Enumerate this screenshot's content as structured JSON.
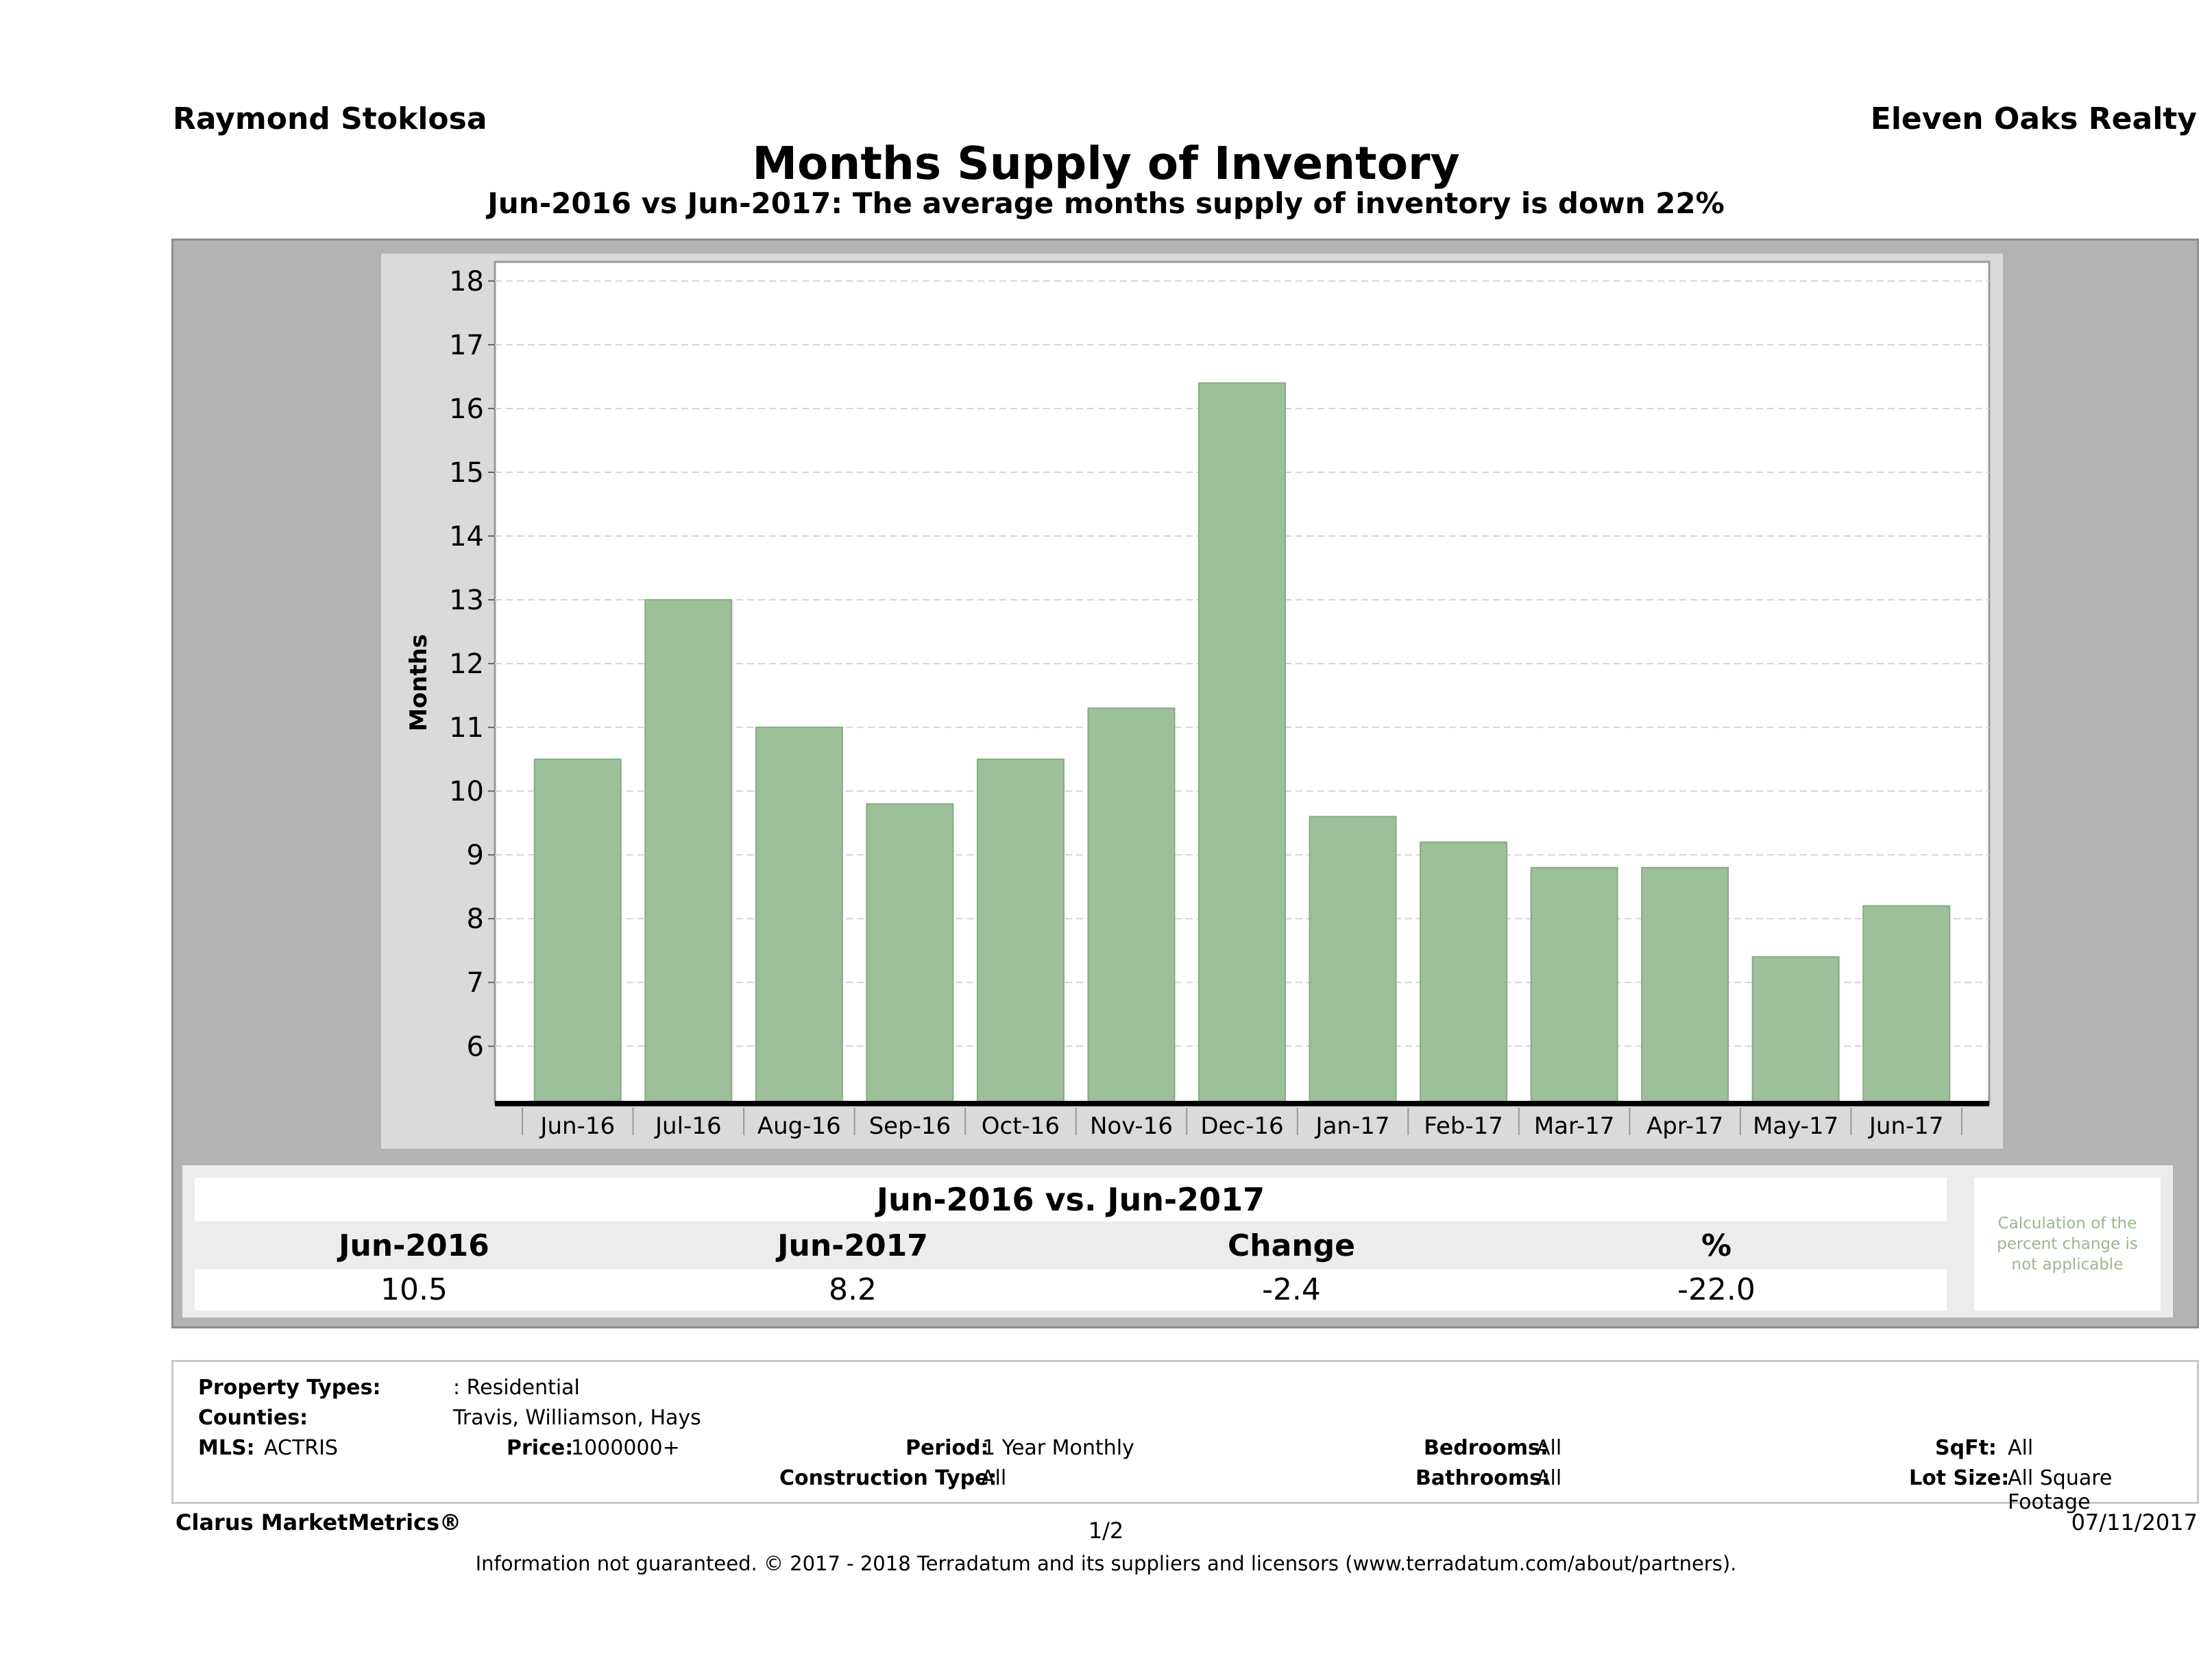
{
  "header": {
    "agent_name": "Raymond Stoklosa",
    "brokerage": "Eleven Oaks Realty",
    "title": "Months Supply of Inventory",
    "subtitle": "Jun-2016 vs Jun-2017: The average months supply of inventory is down 22%"
  },
  "chart_data": {
    "type": "bar",
    "categories": [
      "Jun-16",
      "Jul-16",
      "Aug-16",
      "Sep-16",
      "Oct-16",
      "Nov-16",
      "Dec-16",
      "Jan-17",
      "Feb-17",
      "Mar-17",
      "Apr-17",
      "May-17",
      "Jun-17"
    ],
    "values": [
      10.5,
      13.0,
      11.0,
      9.8,
      10.5,
      11.3,
      16.4,
      9.6,
      9.2,
      8.8,
      8.8,
      7.4,
      8.2
    ],
    "ylabel": "Months",
    "ylim": [
      5.1,
      18.3
    ],
    "yticks": [
      6,
      7,
      8,
      9,
      10,
      11,
      12,
      13,
      14,
      15,
      16,
      17,
      18
    ],
    "grid": true,
    "bar_color": "#9dc09a"
  },
  "summary": {
    "title": "Jun-2016 vs. Jun-2017",
    "headers": [
      "Jun-2016",
      "Jun-2017",
      "Change",
      "%"
    ],
    "values": [
      "10.5",
      "8.2",
      "-2.4",
      "-22.0"
    ],
    "note": "Calculation of the percent change is not applicable"
  },
  "filters": {
    "property_types_label": "Property Types:",
    "property_types_value": ": Residential",
    "counties_label": "Counties:",
    "counties_value": "Travis, Williamson, Hays",
    "mls_label": "MLS:",
    "mls_value": "ACTRIS",
    "price_label": "Price:",
    "price_value": "1000000+",
    "period_label": "Period:",
    "period_value": "1 Year Monthly",
    "construction_label": "Construction Type:",
    "construction_value": "All",
    "bedrooms_label": "Bedrooms:",
    "bedrooms_value": "All",
    "bathrooms_label": "Bathrooms:",
    "bathrooms_value": "All",
    "sqft_label": "SqFt:",
    "sqft_value": "All",
    "lot_label": "Lot Size:",
    "lot_value": "All Square Footage"
  },
  "footer": {
    "brand": "Clarus MarketMetrics®",
    "page": "1/2",
    "date": "07/11/2017",
    "disclaimer": "Information not guaranteed. © 2017 - 2018 Terradatum and its suppliers and licensors (www.terradatum.com/about/partners)."
  }
}
